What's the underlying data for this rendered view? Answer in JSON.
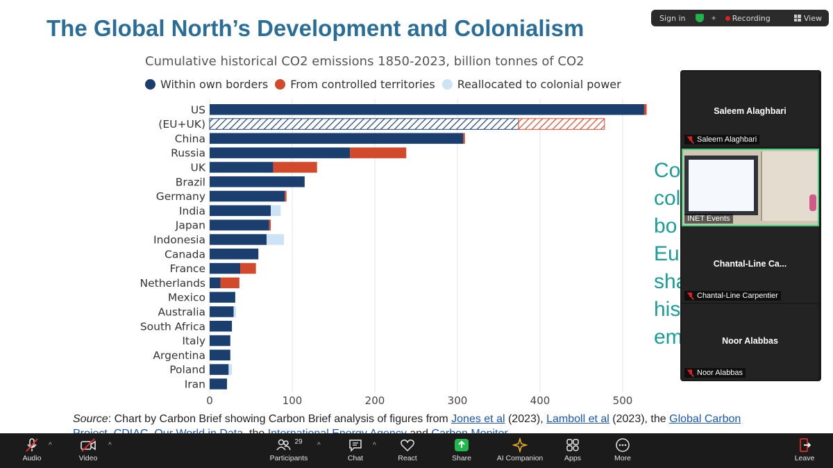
{
  "slide": {
    "title": "The Global North’s Development and Colonialism",
    "source": {
      "prefix": "Source",
      "text1": ": Chart by Carbon Brief showing Carbon Brief analysis of figures from ",
      "link1": "Jones et al",
      "text2": " (2023), ",
      "link2": "Lamboll et al",
      "text3": " (2023), the ",
      "link3": "Global Carbon Project",
      "text4": ", ",
      "link4": "CDIAC",
      "text5": ", ",
      "link5": "Our World in Data",
      "text6": ", the ",
      "link6": "International Energy Agency",
      "text7": " and ",
      "link7": "Carbon Monitor"
    },
    "right_text": [
      "Co",
      "col",
      "bo",
      "Eu",
      "sha",
      "his",
      "em"
    ]
  },
  "chart_data": {
    "type": "bar",
    "orientation": "horizontal",
    "stacked": true,
    "title": "",
    "subtitle": "Cumulative historical CO2 emissions 1850-2023, billion tonnes of CO2",
    "categories": [
      "US",
      "(EU+UK)",
      "China",
      "Russia",
      "UK",
      "Brazil",
      "Germany",
      "India",
      "Japan",
      "Indonesia",
      "Canada",
      "France",
      "Netherlands",
      "Mexico",
      "Australia",
      "South Africa",
      "Italy",
      "Argentina",
      "Poland",
      "Iran"
    ],
    "series": [
      {
        "name": "Within own borders",
        "color": "#1a3f6f",
        "values": [
          526,
          374,
          307,
          170,
          77,
          115,
          91,
          74,
          72,
          69,
          59,
          37,
          13,
          31,
          29,
          27,
          25,
          25,
          23,
          21
        ]
      },
      {
        "name": "From controlled territories",
        "color": "#d24a2b",
        "values": [
          3,
          104,
          2,
          68,
          53,
          0,
          2,
          0,
          2,
          0,
          0,
          19,
          23,
          0,
          0,
          0,
          0,
          0,
          0,
          0
        ]
      },
      {
        "name": "Reallocated to colonial power",
        "color": "#cce3f5",
        "values": [
          0,
          0,
          0,
          0,
          0,
          0,
          0,
          12,
          0,
          21,
          0,
          0,
          0,
          0,
          3,
          0,
          0,
          0,
          4,
          0
        ]
      }
    ],
    "hatched_categories": [
      "(EU+UK)"
    ],
    "xticks": [
      "0",
      "100",
      "200",
      "300",
      "400",
      "500"
    ],
    "xlim": [
      0,
      530
    ],
    "grid": true,
    "legend_position": "top"
  },
  "zoom": {
    "topbar": {
      "signin": "Sign in",
      "recording": "Recording",
      "view": "View"
    },
    "tiles": [
      {
        "name": "Saleem Alaghbari",
        "label": "Saleem Alaghbari"
      },
      {
        "label": "INET Events"
      },
      {
        "name": "Chantal-Line  Ca...",
        "label": "Chantal-Line Carpentier"
      },
      {
        "name": "Noor Alabbas",
        "label": "Noor Alabbas"
      }
    ],
    "toolbar": {
      "audio": "Audio",
      "video": "Video",
      "participants": "Participants",
      "participants_count": "29",
      "chat": "Chat",
      "react": "React",
      "share": "Share",
      "ai": "AI Companion",
      "apps": "Apps",
      "more": "More",
      "leave": "Leave"
    }
  },
  "colors": {
    "title": "#2a6e97",
    "accent_green": "#3fd27a",
    "share_green": "#1fb84c",
    "right_text": "#1a9d96"
  }
}
